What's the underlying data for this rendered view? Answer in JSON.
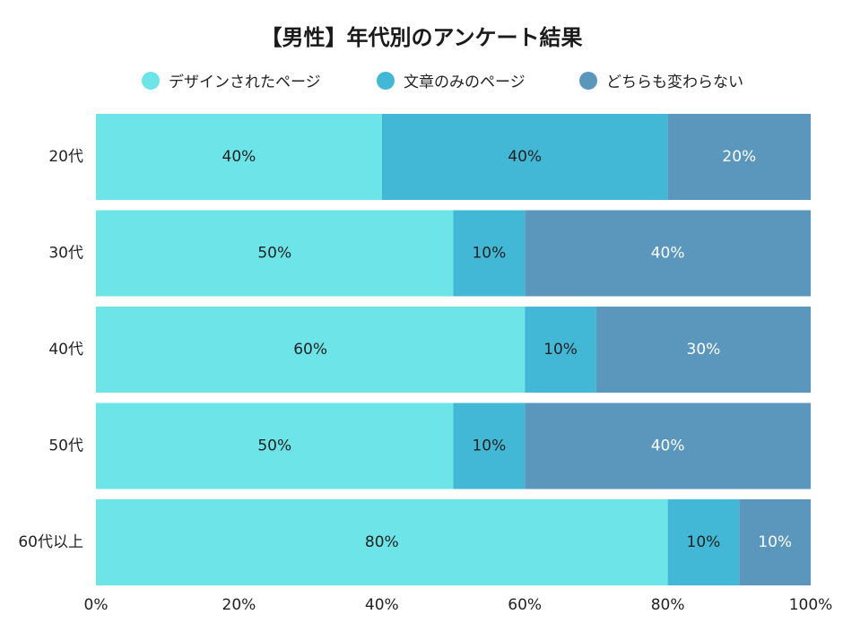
{
  "chart_data": {
    "type": "bar",
    "orientation": "horizontal",
    "stacked": true,
    "title": "【男性】年代別のアンケート結果",
    "categories": [
      "20代",
      "30代",
      "40代",
      "50代",
      "60代以上"
    ],
    "series": [
      {
        "name": "デザインされたページ",
        "color": "#6ce4e8",
        "label_color": "#222222",
        "values": [
          40,
          50,
          60,
          50,
          80
        ]
      },
      {
        "name": "文章のみのページ",
        "color": "#43b7d6",
        "label_color": "#222222",
        "values": [
          40,
          10,
          10,
          10,
          10
        ]
      },
      {
        "name": "どちらも変わらない",
        "color": "#5b97bd",
        "label_color": "#ffffff",
        "values": [
          20,
          40,
          30,
          40,
          10
        ]
      }
    ],
    "value_suffix": "%",
    "x_ticks": [
      "0%",
      "20%",
      "40%",
      "60%",
      "80%",
      "100%"
    ],
    "xlim": [
      0,
      100
    ],
    "grid": false,
    "legend_position": "top"
  }
}
